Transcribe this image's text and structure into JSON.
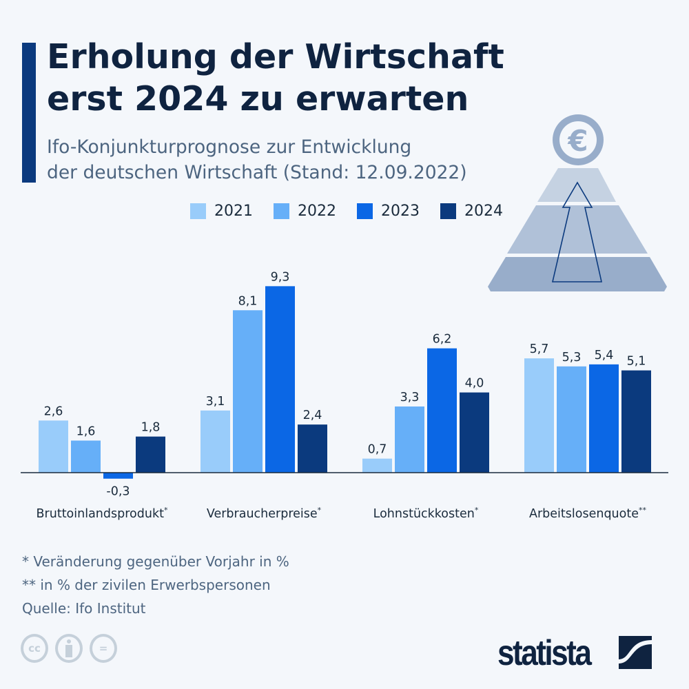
{
  "header": {
    "title_line1": "Erholung der Wirtschaft",
    "title_line2": "erst 2024 zu erwarten",
    "subtitle_line1": "Ifo-Konjunkturprognose zur Entwicklung",
    "subtitle_line2": "der deutschen Wirtschaft (Stand: 12.09.2022)"
  },
  "chart_data": {
    "type": "bar",
    "categories": [
      "Bruttoinlandsprodukt",
      "Verbraucherpreise",
      "Lohnstückkosten",
      "Arbeitslosenquote"
    ],
    "category_marks": [
      "*",
      "*",
      "*",
      "**"
    ],
    "series": [
      {
        "name": "2021",
        "color": "#99ccfa",
        "values": [
          2.6,
          3.1,
          0.7,
          5.7
        ],
        "labels": [
          "2,6",
          "3,1",
          "0,7",
          "5,7"
        ]
      },
      {
        "name": "2022",
        "color": "#66aff8",
        "values": [
          1.6,
          8.1,
          3.3,
          5.3
        ],
        "labels": [
          "1,6",
          "8,1",
          "3,3",
          "5,3"
        ]
      },
      {
        "name": "2023",
        "color": "#0b67e5",
        "values": [
          -0.3,
          9.3,
          6.2,
          5.4
        ],
        "labels": [
          "-0,3",
          "9,3",
          "6,2",
          "5,4"
        ]
      },
      {
        "name": "2024",
        "color": "#0b3a7e",
        "values": [
          1.8,
          2.4,
          4.0,
          5.1
        ],
        "labels": [
          "1,8",
          "2,4",
          "4,0",
          "5,1"
        ]
      }
    ],
    "legend": "top",
    "grid": false
  },
  "notes": {
    "n1": "*   Veränderung gegenüber Vorjahr in %",
    "n2": "** in % der zivilen Erwerbspersonen",
    "source": "Quelle: Ifo Institut"
  },
  "footer": {
    "license_icons": [
      "cc-icon",
      "by-icon",
      "nd-icon"
    ],
    "cc_text": "cc",
    "nd_text": "=",
    "logo": "statista"
  },
  "illustration": {
    "icon": "euro-pyramid-arrow",
    "symbol": "€"
  }
}
